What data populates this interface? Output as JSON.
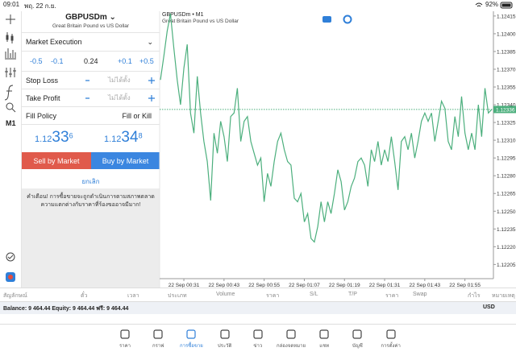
{
  "status_bar": {
    "time": "09:01",
    "date": "พฤ. 22 ก.ย.",
    "battery": "92%"
  },
  "toolbar": {
    "timeframe": "M1"
  },
  "order": {
    "symbol": "GBPUSDm",
    "description": "Great Britain Pound vs US Dollar",
    "execution": "Market Execution",
    "volume_steps": [
      "-0.5",
      "-0.1",
      "+0.1",
      "+0.5"
    ],
    "volume": "0.24",
    "stop_loss": {
      "label": "Stop Loss",
      "value": "ไม่ได้ตั้ง"
    },
    "take_profit": {
      "label": "Take Profit",
      "value": "ไม่ได้ตั้ง"
    },
    "fill_policy": {
      "label": "Fill Policy",
      "value": "Fill or Kill"
    },
    "bid": {
      "pre": "1.12",
      "big": "33",
      "sup": "6"
    },
    "ask": {
      "pre": "1.12",
      "big": "34",
      "sup": "8"
    },
    "sell": "Sell by Market",
    "buy": "Buy by Market",
    "cancel": "ยกเลิก",
    "warning": "คำเตือน! การซื้อขายจะถูกดำเนินการตามสภาพตลาด ความแตกต่างกับราคาที่ร้องขออาจมีมาก!"
  },
  "chart_data": {
    "type": "line",
    "title": "GBPUSDm • M1",
    "subtitle": "Great Britain Pound vs US Dollar",
    "color": "#4caf7d",
    "categories": [
      null,
      null,
      null,
      null,
      null,
      null,
      null,
      "22 Sep 00:31",
      null,
      null,
      null,
      null,
      null,
      null,
      null,
      null,
      null,
      null,
      null,
      "22 Sep 00:43",
      null,
      null,
      null,
      null,
      null,
      null,
      null,
      null,
      null,
      null,
      null,
      "22 Sep 00:55",
      null,
      null,
      null,
      null,
      null,
      null,
      null,
      null,
      null,
      null,
      null,
      "22 Sep 01:07",
      null,
      null,
      null,
      null,
      null,
      null,
      null,
      null,
      null,
      null,
      null,
      "22 Sep 01:19",
      null,
      null,
      null,
      null,
      null,
      null,
      null,
      null,
      null,
      null,
      null,
      "22 Sep 01:31",
      null,
      null,
      null,
      null,
      null,
      null,
      null,
      null,
      null,
      null,
      null,
      "22 Sep 01:43",
      null,
      null,
      null,
      null,
      null,
      null,
      null,
      null,
      null,
      null,
      null,
      "22 Sep 01:55",
      null,
      null,
      null,
      null,
      null,
      null,
      null,
      null
    ],
    "values": [
      1.12361,
      1.12381,
      1.12402,
      1.12417,
      1.12388,
      1.12361,
      1.1234,
      1.12371,
      1.12391,
      1.12333,
      1.12316,
      1.12364,
      1.12333,
      1.12309,
      1.12292,
      1.12259,
      1.12316,
      1.12299,
      1.12326,
      1.12313,
      1.12292,
      1.1233,
      1.12333,
      1.12354,
      1.12309,
      1.12326,
      1.1233,
      1.12309,
      1.12299,
      1.12289,
      1.12295,
      1.12258,
      1.12282,
      1.12271,
      1.12292,
      1.12309,
      1.12316,
      1.12302,
      1.12292,
      1.12289,
      1.12261,
      1.12258,
      1.12265,
      1.12241,
      1.12248,
      1.12227,
      1.12224,
      1.12237,
      1.12258,
      1.12241,
      1.12258,
      1.12248,
      1.12265,
      1.12285,
      1.12275,
      1.12251,
      1.12258,
      1.12271,
      1.12278,
      1.12292,
      1.12295,
      1.12289,
      1.12271,
      1.12302,
      1.12292,
      1.12309,
      1.12289,
      1.12302,
      1.12292,
      1.12313,
      1.12292,
      1.12268,
      1.12309,
      1.12313,
      1.12302,
      1.12316,
      1.12295,
      1.12309,
      1.12326,
      1.12333,
      1.12326,
      1.12333,
      1.12309,
      1.12326,
      1.12343,
      1.12337,
      1.12309,
      1.12302,
      1.1233,
      1.12313,
      1.12347,
      1.12316,
      1.12302,
      1.12316,
      1.12302,
      1.1234,
      1.12313,
      1.12354,
      1.12333,
      1.12336
    ],
    "ylim": [
      1.12193,
      1.12419
    ],
    "yticks": [
      1.12415,
      {
        "value": 1.124,
        "label": "1.12400"
      },
      1.12385,
      {
        "value": 1.1237,
        "label": "1.12370"
      },
      1.12355,
      {
        "value": 1.1234,
        "label": "1.12340"
      },
      1.12325,
      {
        "value": 1.1231,
        "label": "1.12310"
      },
      1.12295,
      {
        "value": 1.1228,
        "label": "1.12280"
      },
      1.12265,
      {
        "value": 1.1225,
        "label": "1.12250"
      },
      1.12235,
      {
        "value": 1.1222,
        "label": "1.12220"
      },
      1.12205
    ],
    "current_price": 1.12336
  },
  "positions_table": {
    "headers": [
      "สัญลักษณ์",
      "ตั๋ว",
      "เวลา",
      "ประเภท",
      "Volume",
      "ราคา",
      "S/L",
      "T/P",
      "ราคา",
      "Swap",
      "กำไร",
      "หมายเหตุ"
    ]
  },
  "account": {
    "summary": "Balance: 9 464.44 Equity: 9 464.44 ฟรี: 9 464.44",
    "currency": "USD"
  },
  "tabs": [
    "ราคา",
    "กราฟ",
    "การซื้อขาย",
    "ประวัติ",
    "ข่าว",
    "กล่องจดหมาย",
    "แชท",
    "บัญชี",
    "การตั้งค่า"
  ]
}
